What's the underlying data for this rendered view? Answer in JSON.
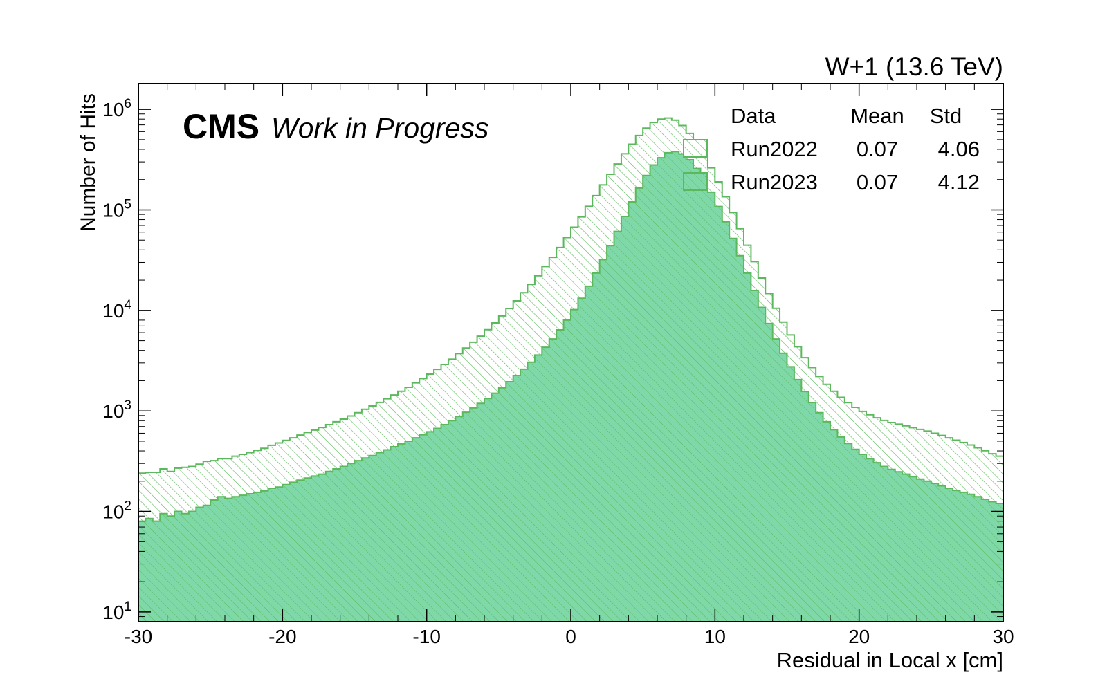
{
  "colors": {
    "run2022_edge": "#5cb85c",
    "run2022_fill": "#ffffff",
    "run2022_hatch": "#5cb85c",
    "run2023_edge": "#5cb85c",
    "run2023_fill": "#7fd8a8",
    "run2023_hatch": "#5cb85c"
  },
  "header": {
    "experiment": "CMS",
    "status": "Work in Progress",
    "lumi_label": "W+1 (13.6 TeV)"
  },
  "legend": {
    "header_data": "Data",
    "header_mean": "Mean",
    "header_std": "Std",
    "placement": "top-right",
    "entries": [
      {
        "name": "Run2022",
        "mean": "0.07",
        "std": "4.06"
      },
      {
        "name": "Run2023",
        "mean": "0.07",
        "std": "4.12"
      }
    ]
  },
  "chart_data": {
    "type": "histogram",
    "title": "",
    "xlabel": "Residual in Local x [cm]",
    "ylabel": "Number of Hits",
    "xlim": [
      -30,
      30
    ],
    "ylim": [
      8,
      1800000
    ],
    "yscale": "log",
    "grid": false,
    "bin_width": 0.5,
    "x_ticks": [
      "-30",
      "-20",
      "-10",
      "0",
      "10",
      "20",
      "30"
    ],
    "y_ticks": [
      {
        "base": "10",
        "exp": "1"
      },
      {
        "base": "10",
        "exp": "2"
      },
      {
        "base": "10",
        "exp": "3"
      },
      {
        "base": "10",
        "exp": "4"
      },
      {
        "base": "10",
        "exp": "5"
      },
      {
        "base": "10",
        "exp": "6"
      }
    ],
    "stacked": true,
    "series": [
      {
        "name": "Run2023",
        "style": "filled",
        "values": [
          80,
          85,
          80,
          95,
          90,
          100,
          95,
          100,
          110,
          115,
          130,
          140,
          135,
          140,
          145,
          150,
          155,
          160,
          170,
          175,
          185,
          195,
          205,
          215,
          225,
          235,
          250,
          265,
          280,
          300,
          320,
          340,
          360,
          385,
          410,
          440,
          470,
          500,
          540,
          580,
          620,
          670,
          730,
          800,
          880,
          970,
          1070,
          1190,
          1330,
          1500,
          1700,
          1950,
          2250,
          2600,
          3050,
          3600,
          4300,
          5200,
          6400,
          8000,
          10200,
          13200,
          17400,
          23500,
          32000,
          44000,
          61000,
          86000,
          120000,
          165000,
          220000,
          280000,
          330000,
          370000,
          380000,
          360000,
          315000,
          258000,
          200000,
          150000,
          108000,
          76000,
          52000,
          35000,
          23500,
          15800,
          10700,
          7400,
          5200,
          3750,
          2750,
          2050,
          1560,
          1210,
          960,
          780,
          650,
          550,
          475,
          415,
          370,
          335,
          305,
          280,
          262,
          248,
          235,
          222,
          210,
          200,
          190,
          180,
          170,
          162,
          155,
          148,
          140,
          132,
          125,
          120,
          113,
          108,
          103,
          98,
          94,
          90
        ]
      },
      {
        "name": "Run2022",
        "style": "hatched",
        "values": [
          160,
          160,
          165,
          170,
          160,
          170,
          180,
          180,
          185,
          200,
          190,
          195,
          200,
          215,
          225,
          235,
          250,
          265,
          285,
          305,
          325,
          345,
          370,
          395,
          420,
          450,
          480,
          515,
          550,
          590,
          640,
          700,
          760,
          830,
          910,
          1000,
          1100,
          1220,
          1360,
          1520,
          1700,
          1920,
          2170,
          2470,
          2830,
          3250,
          3750,
          4350,
          5100,
          6000,
          7100,
          8500,
          10200,
          12400,
          15100,
          18500,
          23000,
          28500,
          35800,
          45000,
          57000,
          72000,
          91000,
          115000,
          145000,
          182000,
          225000,
          275000,
          330000,
          385000,
          430000,
          460000,
          470000,
          450000,
          400000,
          330000,
          262000,
          202000,
          152000,
          112000,
          82000,
          59000,
          42000,
          30000,
          21000,
          14700,
          10300,
          7300,
          5300,
          3900,
          2950,
          2300,
          1830,
          1490,
          1240,
          1060,
          920,
          815,
          735,
          670,
          620,
          580,
          550,
          525,
          505,
          490,
          475,
          460,
          445,
          430,
          410,
          390,
          370,
          350,
          330,
          310,
          290,
          270,
          250,
          235,
          220,
          205,
          190,
          180,
          170,
          160
        ]
      }
    ]
  }
}
